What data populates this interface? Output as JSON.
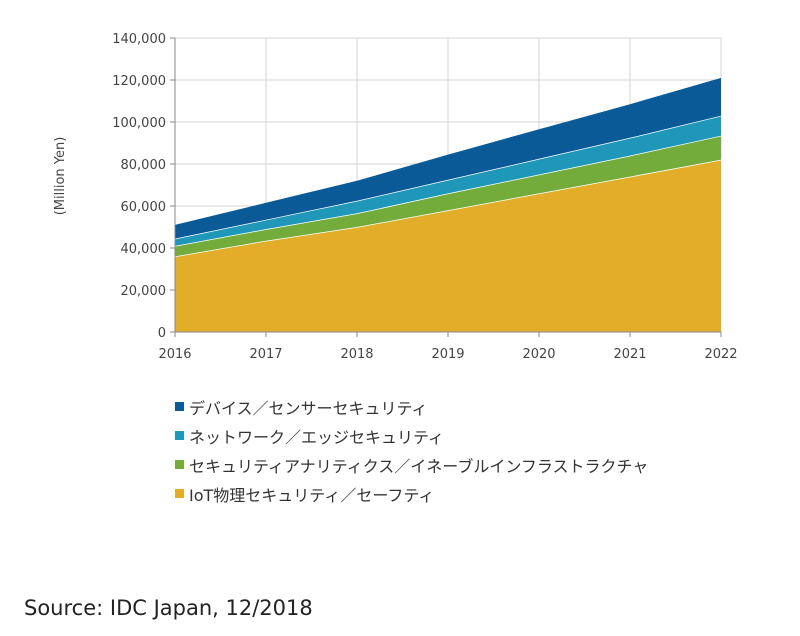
{
  "chart_data": {
    "type": "area",
    "stacked": true,
    "title": "",
    "xlabel": "",
    "ylabel": "(Million Yen)",
    "x": [
      "2016",
      "2017",
      "2018",
      "2019",
      "2020",
      "2021",
      "2022"
    ],
    "ylim": [
      0,
      140000
    ],
    "yticks": [
      0,
      20000,
      40000,
      60000,
      80000,
      100000,
      120000,
      140000
    ],
    "ytick_labels": [
      "0",
      "20,000",
      "40,000",
      "60,000",
      "80,000",
      "100,000",
      "120,000",
      "140,000"
    ],
    "grid": true,
    "legend_position": "bottom",
    "series": [
      {
        "name": "IoT物理セキュリティ／セーフティ",
        "color": "#e2ae2a",
        "values": [
          36000,
          43500,
          50000,
          58000,
          66000,
          74000,
          82000
        ]
      },
      {
        "name": "セキュリティアナリティクス／イネーブルインフラストラクチャ",
        "color": "#74ac3c",
        "values": [
          5000,
          5500,
          6500,
          8000,
          9000,
          10000,
          11500
        ]
      },
      {
        "name": "ネットワーク／エッジセキュリティ",
        "color": "#1f97b8",
        "values": [
          3500,
          4500,
          6000,
          6500,
          7500,
          8500,
          9500
        ]
      },
      {
        "name": "デバイス／センサーセキュリティ",
        "color": "#0a5a97",
        "values": [
          6500,
          8000,
          9500,
          12000,
          14000,
          16000,
          18000
        ]
      }
    ]
  },
  "legend_order": [
    3,
    2,
    1,
    0
  ],
  "source": "Source: IDC Japan, 12/2018"
}
